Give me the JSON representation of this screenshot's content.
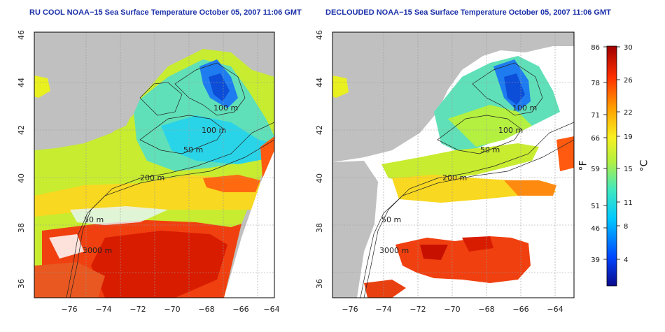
{
  "panels": [
    {
      "title": "RU COOL NOAA−15 Sea Surface Temperature October 05, 2007 11:06 GMT",
      "contour_labels": [
        "100 m",
        "100 m",
        "50 m",
        "200 m",
        "50 m",
        "3000 m"
      ]
    },
    {
      "title": "DECLOUDED NOAA−15 Sea Surface Temperature October 05, 2007 11:06 GMT",
      "contour_labels": [
        "100 m",
        "100 m",
        "50 m",
        "200 m",
        "50 m",
        "3000 m"
      ]
    }
  ],
  "x_ticks": [
    "−76",
    "−74",
    "−72",
    "−70",
    "−68",
    "−66",
    "−64"
  ],
  "y_ticks": [
    "36",
    "38",
    "40",
    "42",
    "44",
    "46"
  ],
  "colorbar": {
    "fahrenheit_ticks": [
      "86",
      "78",
      "71",
      "66",
      "59",
      "51",
      "46",
      "39"
    ],
    "celsius_ticks": [
      "30",
      "26",
      "22",
      "19",
      "15",
      "11",
      "8",
      "4"
    ],
    "f_unit": "°F",
    "c_unit": "°C",
    "colors": [
      "#0a0a8c",
      "#0046ff",
      "#00c8ff",
      "#40e8c0",
      "#b4f040",
      "#f8f020",
      "#ffa000",
      "#ff3000",
      "#a00000"
    ]
  }
}
